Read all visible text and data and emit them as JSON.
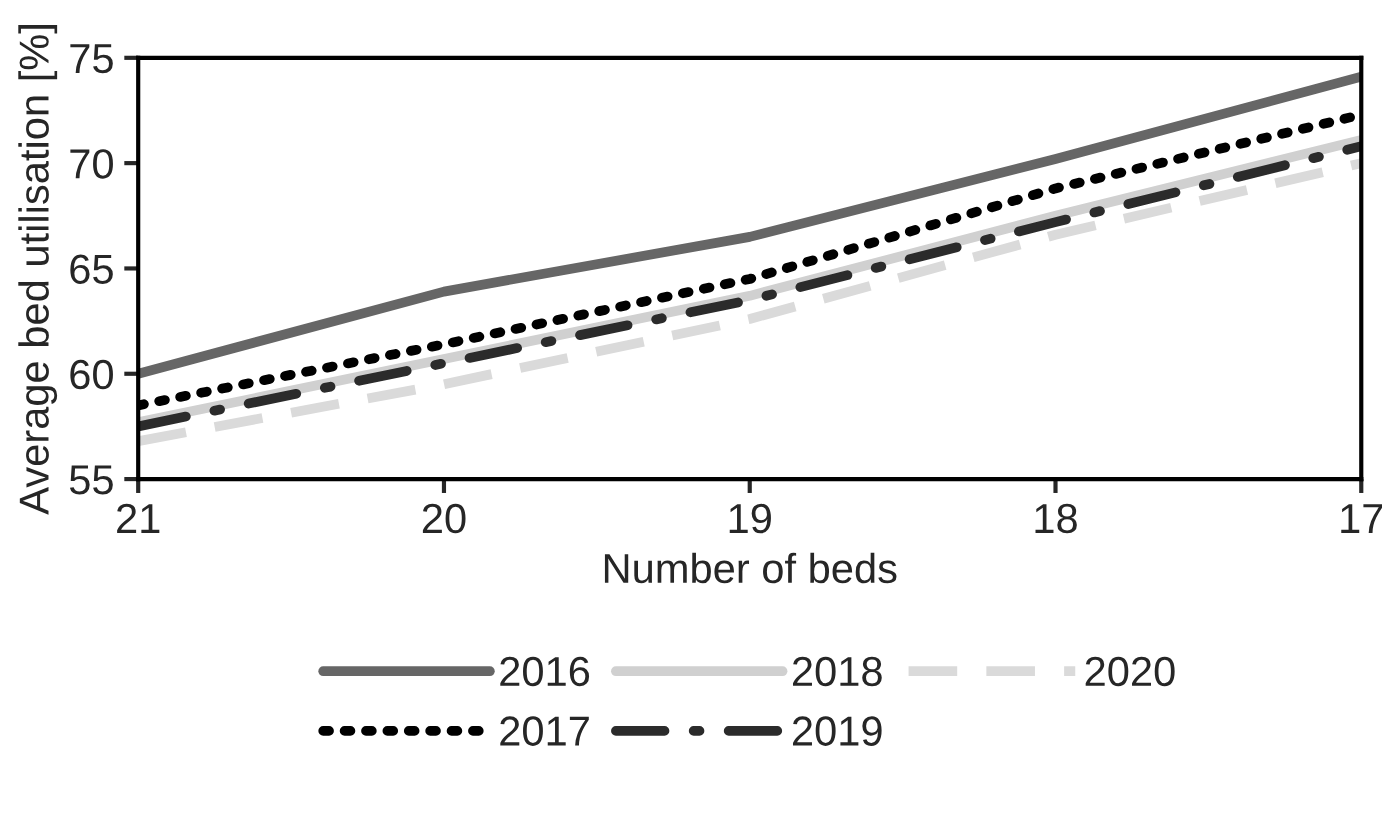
{
  "chart_data": {
    "type": "line",
    "xlabel": "Number of beds",
    "ylabel": "Average bed utilisation [%]",
    "x": [
      21,
      20,
      19,
      18,
      17
    ],
    "series": [
      {
        "name": "2016",
        "color": "#666666",
        "line_style": "solid",
        "values": [
          60.0,
          63.9,
          66.5,
          70.2,
          74.1
        ]
      },
      {
        "name": "2017",
        "color": "#000000",
        "line_style": "dotted",
        "values": [
          58.5,
          61.4,
          64.5,
          68.8,
          72.3
        ]
      },
      {
        "name": "2018",
        "color": "#d0d0d0",
        "line_style": "solid",
        "values": [
          57.7,
          60.7,
          63.7,
          67.5,
          71.1
        ]
      },
      {
        "name": "2019",
        "color": "#2b2b2b",
        "line_style": "dashdot",
        "values": [
          57.5,
          60.5,
          63.5,
          67.2,
          70.8
        ]
      },
      {
        "name": "2020",
        "color": "#dadada",
        "line_style": "dashed",
        "values": [
          56.8,
          59.5,
          62.6,
          66.6,
          70.0
        ]
      }
    ],
    "xlim": [
      21,
      17
    ],
    "xticks": [
      21,
      20,
      19,
      18,
      17
    ],
    "ylim": [
      55,
      75
    ],
    "yticks": [
      55,
      60,
      65,
      70,
      75
    ],
    "grid": false,
    "legend": "bottom",
    "marker": "none"
  }
}
